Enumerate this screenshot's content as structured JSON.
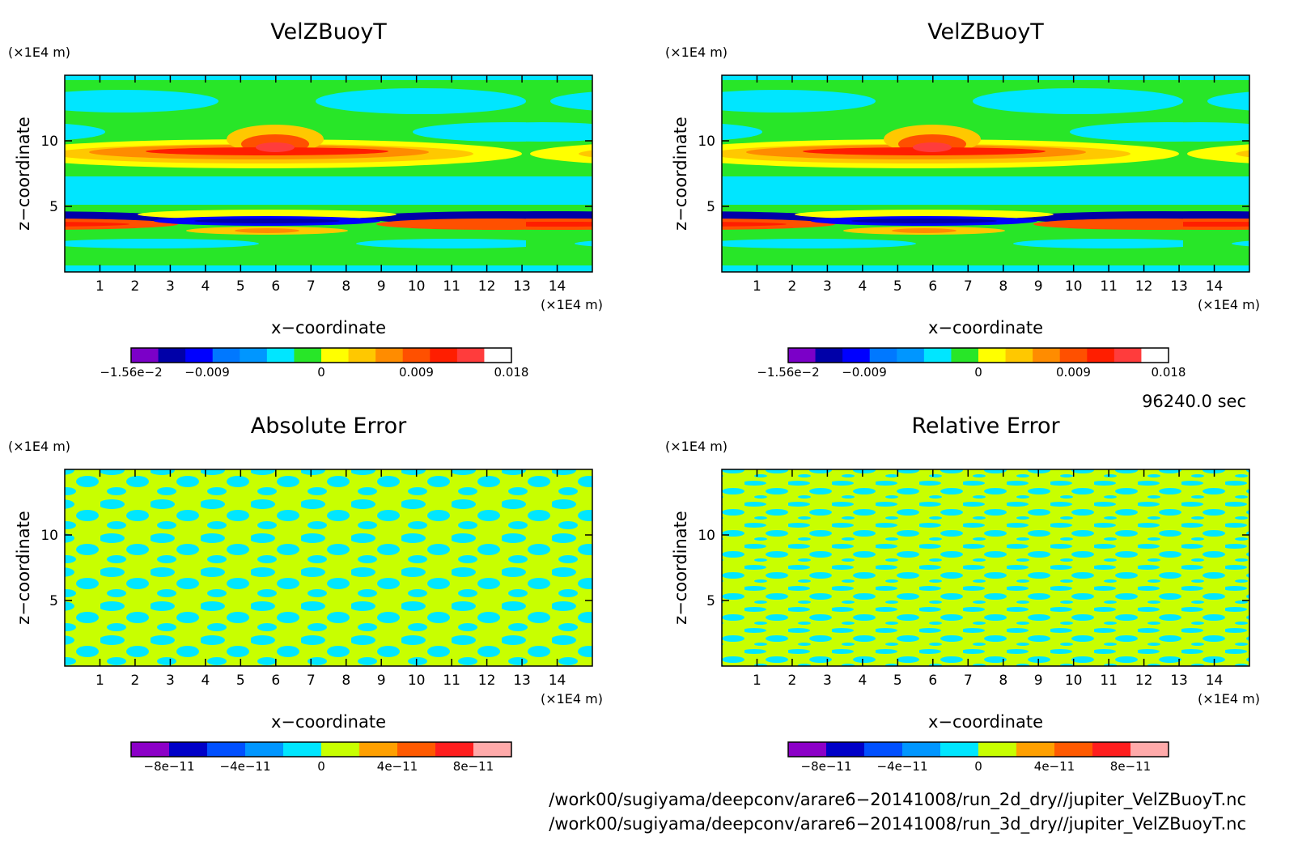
{
  "chart_data": [
    {
      "type": "heatmap",
      "title": "VelZBuoyT",
      "xlabel": "x−coordinate",
      "ylabel": "z−coordinate",
      "x_unit": "(×1E4 m)",
      "y_unit": "(×1E4 m)",
      "xlim": [
        0,
        15
      ],
      "ylim": [
        0,
        15
      ],
      "x_ticks": [
        "1",
        "2",
        "3",
        "4",
        "5",
        "6",
        "7",
        "8",
        "9",
        "10",
        "11",
        "12",
        "13",
        "14"
      ],
      "y_ticks": [
        "5",
        "10"
      ],
      "colorbar_labels": [
        "−1.56e−2",
        "−0.009",
        "0",
        "0.009",
        "0.018"
      ],
      "colorbar_colors": [
        "#7b00c8",
        "#0000a8",
        "#0000ff",
        "#0078ff",
        "#0096ff",
        "#00e6ff",
        "#28e628",
        "#ffff00",
        "#ffc800",
        "#ff8c00",
        "#ff5000",
        "#ff1e00",
        "#ff3c3c",
        "#ffffff"
      ]
    },
    {
      "type": "heatmap",
      "title": "VelZBuoyT",
      "xlabel": "x−coordinate",
      "ylabel": "z−coordinate",
      "x_unit": "(×1E4 m)",
      "y_unit": "(×1E4 m)",
      "xlim": [
        0,
        15
      ],
      "ylim": [
        0,
        15
      ],
      "x_ticks": [
        "1",
        "2",
        "3",
        "4",
        "5",
        "6",
        "7",
        "8",
        "9",
        "10",
        "11",
        "12",
        "13",
        "14"
      ],
      "y_ticks": [
        "5",
        "10"
      ],
      "colorbar_labels": [
        "−1.56e−2",
        "−0.009",
        "0",
        "0.009",
        "0.018"
      ],
      "colorbar_colors": [
        "#7b00c8",
        "#0000a8",
        "#0000ff",
        "#0078ff",
        "#0096ff",
        "#00e6ff",
        "#28e628",
        "#ffff00",
        "#ffc800",
        "#ff8c00",
        "#ff5000",
        "#ff1e00",
        "#ff3c3c",
        "#ffffff"
      ]
    },
    {
      "type": "heatmap",
      "title": "Absolute Error",
      "xlabel": "x−coordinate",
      "ylabel": "z−coordinate",
      "x_unit": "(×1E4 m)",
      "y_unit": "(×1E4 m)",
      "xlim": [
        0,
        15
      ],
      "ylim": [
        0,
        15
      ],
      "x_ticks": [
        "1",
        "2",
        "3",
        "4",
        "5",
        "6",
        "7",
        "8",
        "9",
        "10",
        "11",
        "12",
        "13",
        "14"
      ],
      "y_ticks": [
        "5",
        "10"
      ],
      "colorbar_labels": [
        "−8e−11",
        "−4e−11",
        "0",
        "4e−11",
        "8e−11"
      ],
      "colorbar_colors": [
        "#8c00c8",
        "#0000c8",
        "#0050ff",
        "#0096ff",
        "#00e6ff",
        "#c8ff00",
        "#ffa000",
        "#ff5a00",
        "#ff1e1e",
        "#ffaaaa"
      ]
    },
    {
      "type": "heatmap",
      "title": "Relative Error",
      "xlabel": "x−coordinate",
      "ylabel": "z−coordinate",
      "x_unit": "(×1E4 m)",
      "y_unit": "(×1E4 m)",
      "xlim": [
        0,
        15
      ],
      "ylim": [
        0,
        15
      ],
      "x_ticks": [
        "1",
        "2",
        "3",
        "4",
        "5",
        "6",
        "7",
        "8",
        "9",
        "10",
        "11",
        "12",
        "13",
        "14"
      ],
      "y_ticks": [
        "5",
        "10"
      ],
      "colorbar_labels": [
        "−8e−11",
        "−4e−11",
        "0",
        "4e−11",
        "8e−11"
      ],
      "colorbar_colors": [
        "#8c00c8",
        "#0000c8",
        "#0050ff",
        "#0096ff",
        "#00e6ff",
        "#c8ff00",
        "#ffa000",
        "#ff5a00",
        "#ff1e1e",
        "#ffaaaa"
      ]
    }
  ],
  "time_label": "96240.0 sec",
  "files": [
    "/work00/sugiyama/deepconv/arare6−20141008/run_2d_dry//jupiter_VelZBuoyT.nc",
    "/work00/sugiyama/deepconv/arare6−20141008/run_3d_dry//jupiter_VelZBuoyT.nc"
  ]
}
